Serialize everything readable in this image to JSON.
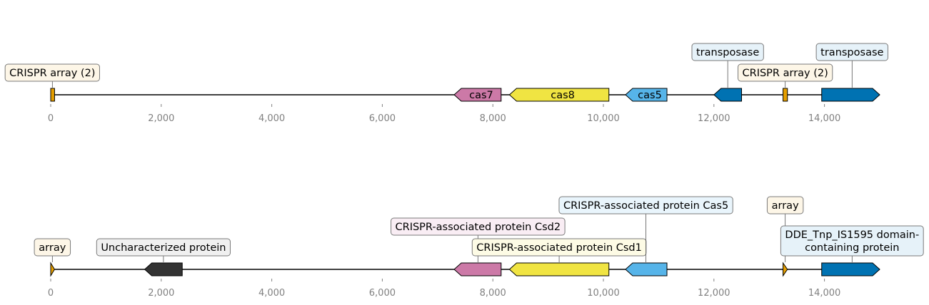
{
  "chart_data": {
    "type": "gene-map",
    "axis": {
      "ticks": [
        "0",
        "2,000",
        "4,000",
        "6,000",
        "8,000",
        "10,000",
        "12,000",
        "14,000"
      ],
      "min": 0,
      "max": 15000
    },
    "tracks": [
      {
        "name": "locus-top",
        "features": [
          {
            "start": 0,
            "end": 70,
            "strand": 0,
            "color": "#E69F00",
            "inner_label": ""
          },
          {
            "start": 7300,
            "end": 8150,
            "strand": -1,
            "color": "#CC79A7",
            "inner_label": "cas7"
          },
          {
            "start": 8300,
            "end": 10100,
            "strand": -1,
            "color": "#F0E442",
            "inner_label": "cas8"
          },
          {
            "start": 10400,
            "end": 11150,
            "strand": -1,
            "color": "#56B4E9",
            "inner_label": "cas5"
          },
          {
            "start": 12000,
            "end": 12500,
            "strand": -1,
            "color": "#0072B2",
            "inner_label": ""
          },
          {
            "start": 13250,
            "end": 13330,
            "strand": 0,
            "color": "#E69F00",
            "inner_label": ""
          },
          {
            "start": 13950,
            "end": 15000,
            "strand": 1,
            "color": "#0072B2",
            "inner_label": ""
          }
        ],
        "annotations": [
          {
            "text": "CRISPR array (2)",
            "at": 30,
            "row": 0,
            "bg": "#FDF6E7"
          },
          {
            "text": "transposase",
            "at": 12250,
            "row": 1,
            "bg": "#E6F2F9"
          },
          {
            "text": "CRISPR array (2)",
            "at": 13290,
            "row": 0,
            "bg": "#FDF6E7"
          },
          {
            "text": "transposase",
            "at": 14500,
            "row": 1,
            "bg": "#E6F2F9"
          }
        ]
      },
      {
        "name": "locus-bottom",
        "features": [
          {
            "start": 0,
            "end": 70,
            "strand": 1,
            "color": "#E69F00",
            "inner_label": ""
          },
          {
            "start": 1700,
            "end": 2380,
            "strand": -1,
            "color": "#333333",
            "inner_label": ""
          },
          {
            "start": 7300,
            "end": 8150,
            "strand": -1,
            "color": "#CC79A7",
            "inner_label": ""
          },
          {
            "start": 8300,
            "end": 10100,
            "strand": -1,
            "color": "#F0E442",
            "inner_label": ""
          },
          {
            "start": 10400,
            "end": 11150,
            "strand": -1,
            "color": "#56B4E9",
            "inner_label": ""
          },
          {
            "start": 13250,
            "end": 13330,
            "strand": 1,
            "color": "#E69F00",
            "inner_label": ""
          },
          {
            "start": 13950,
            "end": 15000,
            "strand": 1,
            "color": "#0072B2",
            "inner_label": ""
          }
        ],
        "annotations": [
          {
            "text": "array",
            "at": 30,
            "row": 0,
            "bg": "#FDF6E7"
          },
          {
            "text": "Uncharacterized protein",
            "at": 2040,
            "row": 0,
            "bg": "#F0F0F0"
          },
          {
            "text": "CRISPR-associated protein Csd2",
            "at": 7730,
            "row": 1,
            "bg": "#F9EDF4"
          },
          {
            "text": "CRISPR-associated protein Csd1",
            "at": 9200,
            "row": 0,
            "bg": "#FDFBE5"
          },
          {
            "text": "CRISPR-associated protein Cas5",
            "at": 10770,
            "row": 2,
            "bg": "#E9F5FC"
          },
          {
            "text": "array",
            "at": 13290,
            "row": 2,
            "bg": "#FDF6E7"
          },
          {
            "text": "DDE_Tnp_IS1595 domain-\ncontaining protein",
            "at": 14500,
            "row": 0,
            "bg": "#E6F2F9"
          }
        ]
      }
    ]
  }
}
